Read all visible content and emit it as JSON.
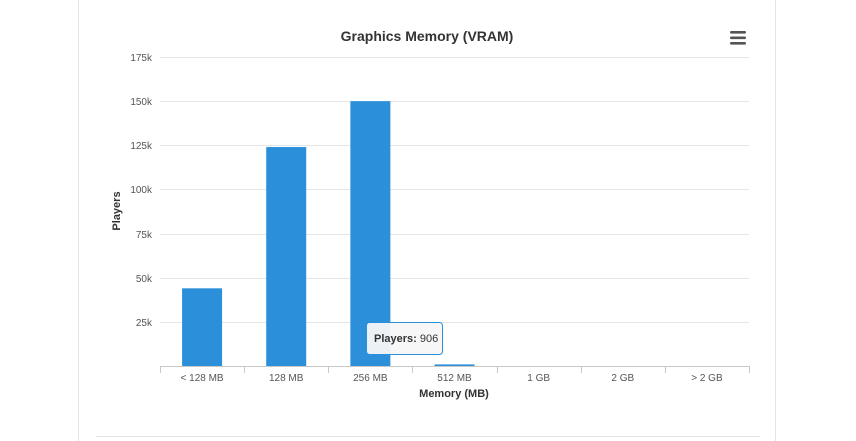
{
  "chart_data": {
    "type": "bar",
    "title": "Graphics Memory (VRAM)",
    "xlabel": "Memory (MB)",
    "ylabel": "Players",
    "categories": [
      "< 128 MB",
      "128 MB",
      "256 MB",
      "512 MB",
      "1 GB",
      "2 GB",
      "> 2 GB"
    ],
    "series": [
      {
        "values": [
          44000,
          124000,
          150000,
          906,
          0,
          0,
          0
        ]
      }
    ],
    "ylim": [
      0,
      175000
    ],
    "yticks": [
      0,
      25000,
      50000,
      75000,
      100000,
      125000,
      150000,
      175000
    ],
    "ytick_labels": [
      "",
      "25k",
      "50k",
      "75k",
      "100k",
      "125k",
      "150k",
      "175k"
    ],
    "grid": true,
    "bar_color": "#2b90d9",
    "tooltip": {
      "label": "Players",
      "value": "906"
    }
  },
  "toolbar": {
    "menu_icon": "hamburger-menu-icon"
  }
}
